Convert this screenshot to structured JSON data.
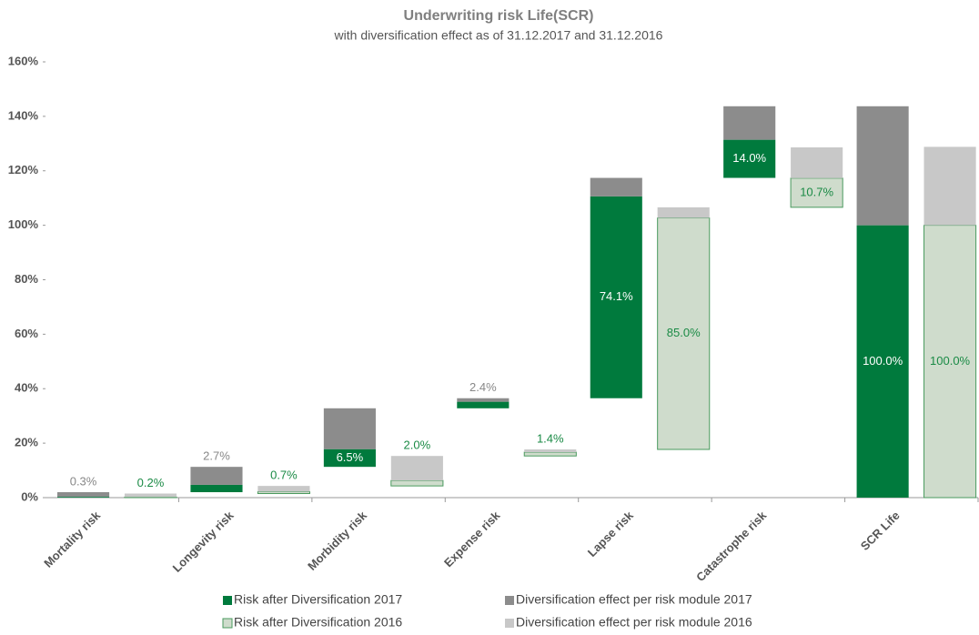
{
  "chart_data": {
    "type": "waterfall",
    "title": "Underwriting risk Life(SCR)",
    "subtitle": "with diversification effect as of 31.12.2017 and 31.12.2016",
    "categories": [
      "Mortality risk",
      "Longevity risk",
      "Morbidity risk",
      "Expense risk",
      "Lapse risk",
      "Catastrophe risk",
      "SCR Life"
    ],
    "series": [
      {
        "name": "Risk after Diversification 2017",
        "color": "#007a3d",
        "group": "2017",
        "values": [
          0.3,
          2.7,
          6.5,
          2.4,
          74.1,
          14.0,
          100.0
        ],
        "value_labels": [
          "0.3%",
          "2.7%",
          "6.5%",
          "2.4%",
          "74.1%",
          "14.0%",
          "100.0%"
        ]
      },
      {
        "name": "Diversification effect per risk module 2017",
        "color": "#8c8c8c",
        "group": "2017",
        "values": [
          1.7,
          6.6,
          15.0,
          1.3,
          6.8,
          12.3,
          43.7
        ]
      },
      {
        "name": "Risk after Diversification 2016",
        "color": "#cfdccc",
        "group": "2016",
        "values": [
          0.2,
          0.7,
          2.0,
          1.4,
          85.0,
          10.7,
          100.0
        ],
        "value_labels": [
          "0.2%",
          "0.7%",
          "2.0%",
          "1.4%",
          "85.0%",
          "10.7%",
          "100.0%"
        ]
      },
      {
        "name": "Diversification effect per risk module 2016",
        "color": "#c8c8c8",
        "group": "2016",
        "values": [
          1.3,
          2.1,
          9.0,
          1.0,
          3.9,
          11.3,
          28.8
        ]
      }
    ],
    "ylim": [
      0,
      160
    ],
    "yticks": [
      {
        "value": 0,
        "label": "0%"
      },
      {
        "value": 20,
        "label": "20%"
      },
      {
        "value": 40,
        "label": "40%"
      },
      {
        "value": 60,
        "label": "60%"
      },
      {
        "value": 80,
        "label": "80%"
      },
      {
        "value": 100,
        "label": "100%"
      },
      {
        "value": 120,
        "label": "120%"
      },
      {
        "value": 140,
        "label": "140%"
      },
      {
        "value": 160,
        "label": "160%"
      }
    ],
    "grid": false
  }
}
